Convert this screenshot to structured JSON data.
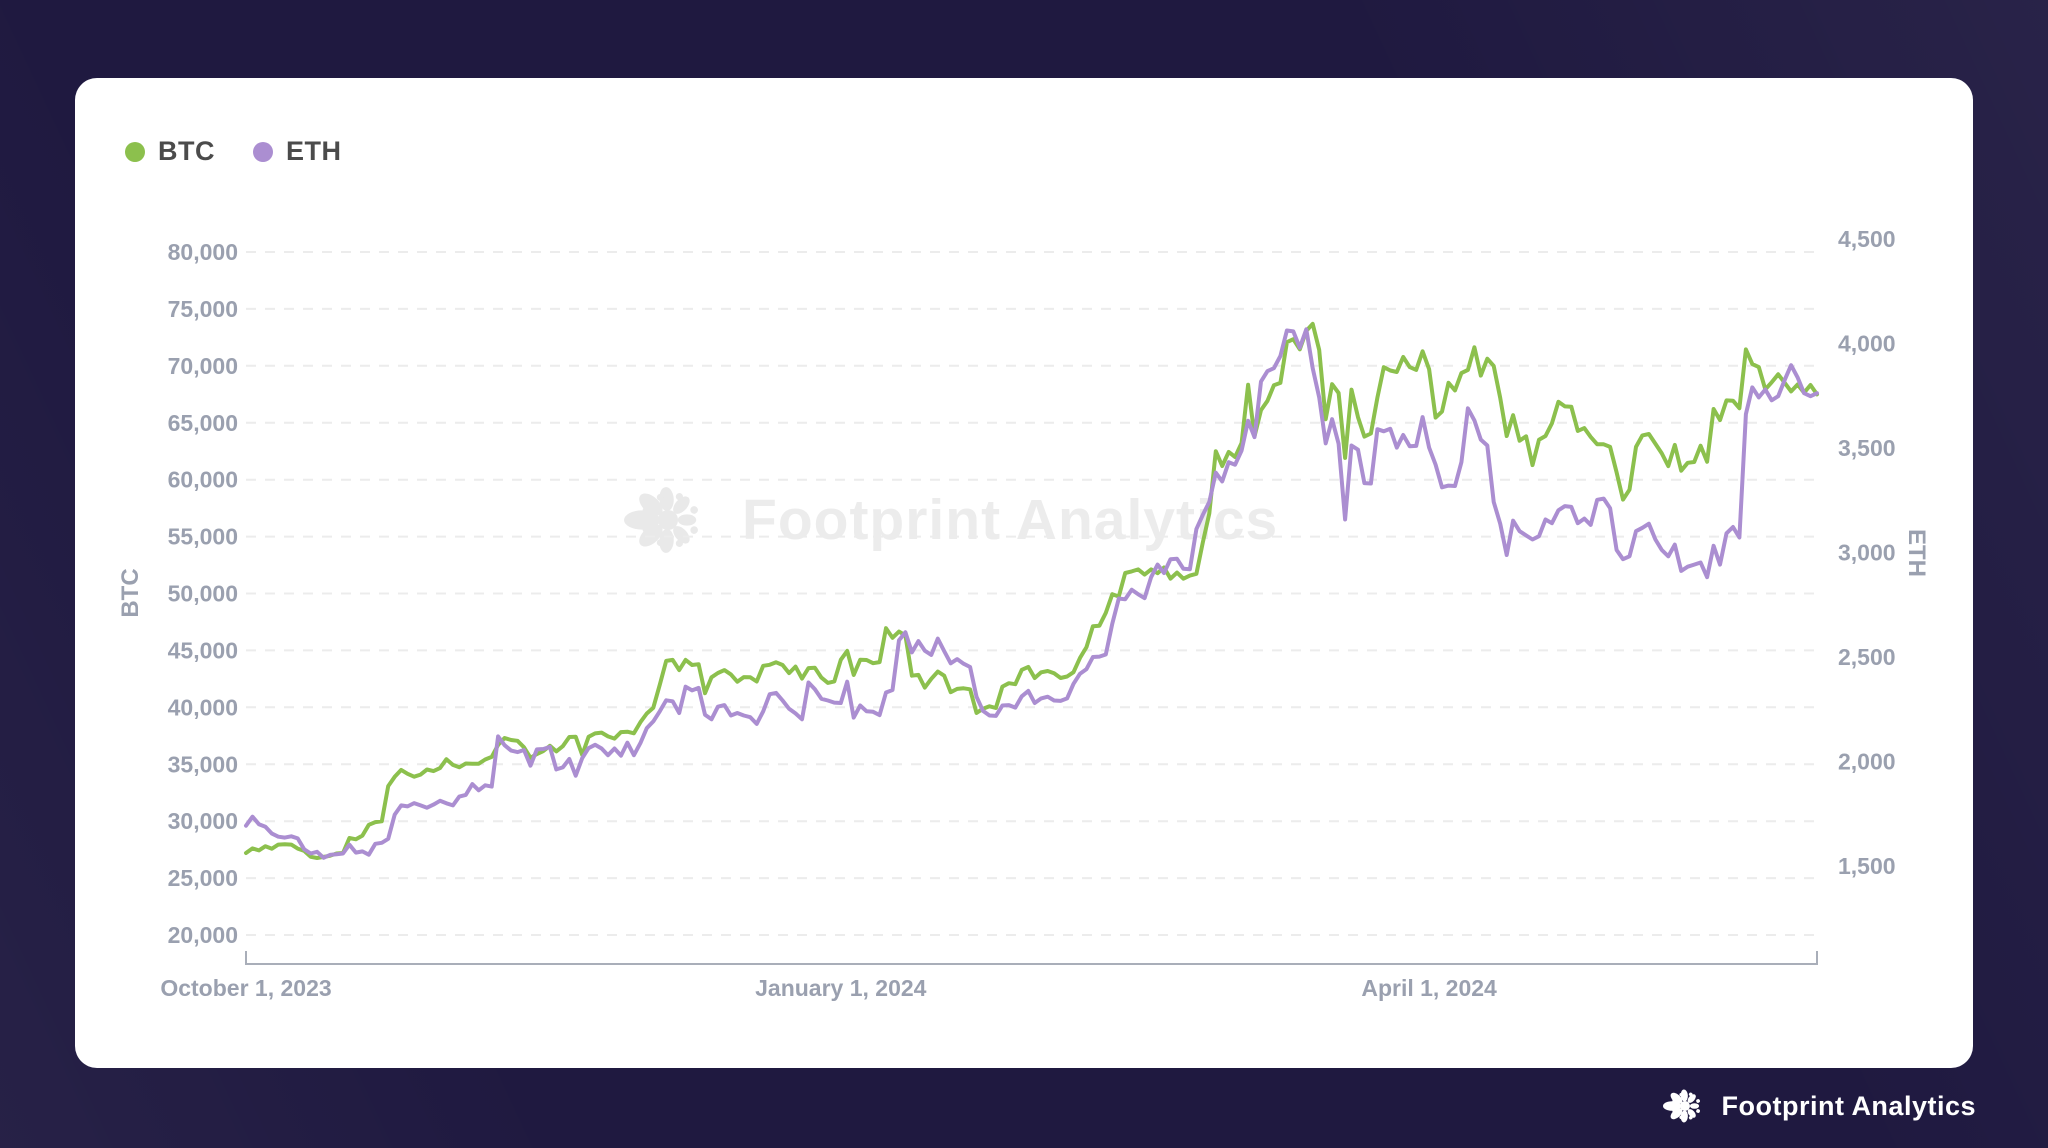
{
  "page": {
    "background_color": "#1f1940",
    "card_color": "#ffffff"
  },
  "legend": {
    "items": [
      {
        "label": "BTC",
        "color": "#8cc04d"
      },
      {
        "label": "ETH",
        "color": "#ab8ed1"
      }
    ]
  },
  "watermark": {
    "text": "Footprint Analytics",
    "icon": "footprint-flower-icon",
    "color": "#ececec"
  },
  "footer": {
    "brand": "Footprint Analytics",
    "icon": "footprint-flower-icon",
    "color": "#ffffff"
  },
  "chart_data": {
    "type": "line",
    "grid": "horizontal-dashed",
    "legend_position": "top-left",
    "x_axis": {
      "ticks": [
        {
          "label": "October 1, 2023",
          "index": 0
        },
        {
          "label": "January 1, 2024",
          "index": 92
        },
        {
          "label": "April 1, 2024",
          "index": 183
        }
      ],
      "range_days": 244
    },
    "left_axis": {
      "title": "BTC",
      "ticks": [
        80000,
        75000,
        70000,
        65000,
        60000,
        55000,
        50000,
        45000,
        40000,
        35000,
        30000,
        25000,
        20000
      ],
      "range": [
        20000,
        80000
      ],
      "tick_color": "#9aa0af"
    },
    "right_axis": {
      "title": "ETH",
      "ticks": [
        4500,
        4000,
        3500,
        3000,
        2500,
        2000,
        1500
      ],
      "range": [
        1500,
        4500
      ],
      "tick_color": "#9aa0af"
    },
    "series": [
      {
        "name": "BTC",
        "axis": "left",
        "color": "#8cc04d",
        "values": [
          27200,
          27610,
          27430,
          27800,
          27580,
          27940,
          27970,
          27940,
          27590,
          27390,
          26870,
          26760,
          26860,
          26960,
          27160,
          27200,
          28520,
          28410,
          28730,
          29680,
          29920,
          29990,
          33080,
          33900,
          34500,
          34160,
          33910,
          34090,
          34540,
          34400,
          34660,
          35440,
          34940,
          34730,
          35070,
          35040,
          35050,
          35420,
          35650,
          36700,
          37310,
          37130,
          37060,
          36490,
          35570,
          35900,
          36160,
          36620,
          36130,
          36590,
          37390,
          37420,
          35810,
          37410,
          37710,
          37780,
          37450,
          37250,
          37820,
          37860,
          37720,
          38690,
          39460,
          39970,
          41990,
          44080,
          44170,
          43270,
          44170,
          43720,
          43790,
          41240,
          42640,
          43020,
          43270,
          42890,
          42250,
          42660,
          42640,
          42270,
          43650,
          43740,
          43960,
          43720,
          43010,
          43580,
          42520,
          43450,
          43470,
          42610,
          42150,
          42280,
          44180,
          44960,
          42850,
          44180,
          44160,
          43880,
          43970,
          46950,
          46110,
          46650,
          46310,
          42780,
          42850,
          41730,
          42510,
          43140,
          42780,
          41330,
          41620,
          41670,
          41580,
          39510,
          39880,
          40090,
          39940,
          41820,
          42120,
          42030,
          43300,
          43550,
          42580,
          43080,
          43190,
          42990,
          42580,
          42710,
          43090,
          44340,
          45290,
          47130,
          47170,
          48300,
          49940,
          49740,
          51800,
          51940,
          52120,
          51660,
          52120,
          51780,
          52280,
          51310,
          51840,
          51300,
          51570,
          51730,
          54480,
          57040,
          62500,
          61200,
          62440,
          61990,
          63220,
          68330,
          63800,
          66110,
          66930,
          68300,
          68500,
          72080,
          72340,
          71450,
          73070,
          73680,
          71390,
          65310,
          68390,
          67610,
          61910,
          67910,
          65490,
          63780,
          64060,
          67210,
          69880,
          69590,
          69460,
          70780,
          69890,
          69640,
          71280,
          69700,
          65450,
          65980,
          68510,
          67840,
          69360,
          69640,
          71630,
          69140,
          70630,
          69990,
          67190,
          63840,
          65660,
          63420,
          63810,
          61280,
          63510,
          63840,
          64940,
          66840,
          66440,
          66410,
          64280,
          64530,
          63760,
          63110,
          63110,
          62880,
          60640,
          58250,
          59120,
          62880,
          63890,
          64010,
          63160,
          62310,
          61190,
          63050,
          60790,
          61480,
          61550,
          62980,
          61570,
          66210,
          65230,
          66960,
          66940,
          66280,
          71440,
          70150,
          69890,
          67930,
          68550,
          69260,
          68510,
          67750,
          68360,
          67640,
          68320,
          67490
        ]
      },
      {
        "name": "ETH",
        "axis": "right",
        "color": "#ab8ed1",
        "values": [
          1693,
          1736,
          1700,
          1688,
          1655,
          1640,
          1636,
          1642,
          1632,
          1580,
          1560,
          1568,
          1539,
          1553,
          1556,
          1560,
          1602,
          1564,
          1570,
          1554,
          1606,
          1611,
          1630,
          1746,
          1790,
          1785,
          1801,
          1790,
          1779,
          1794,
          1812,
          1800,
          1790,
          1832,
          1840,
          1892,
          1862,
          1886,
          1880,
          2120,
          2078,
          2052,
          2045,
          2055,
          1980,
          2058,
          2060,
          2070,
          1962,
          1972,
          2012,
          1932,
          2016,
          2064,
          2080,
          2062,
          2030,
          2062,
          2028,
          2090,
          2030,
          2088,
          2160,
          2192,
          2240,
          2293,
          2288,
          2232,
          2358,
          2340,
          2352,
          2224,
          2202,
          2262,
          2270,
          2220,
          2232,
          2220,
          2212,
          2180,
          2240,
          2322,
          2328,
          2292,
          2252,
          2230,
          2202,
          2378,
          2346,
          2300,
          2292,
          2282,
          2280,
          2382,
          2210,
          2268,
          2240,
          2238,
          2222,
          2330,
          2342,
          2580,
          2618,
          2522,
          2576,
          2530,
          2510,
          2588,
          2528,
          2470,
          2490,
          2468,
          2452,
          2310,
          2242,
          2220,
          2218,
          2268,
          2270,
          2258,
          2312,
          2338,
          2280,
          2302,
          2310,
          2292,
          2290,
          2302,
          2372,
          2420,
          2442,
          2500,
          2502,
          2512,
          2660,
          2780,
          2776,
          2822,
          2800,
          2782,
          2882,
          2942,
          2902,
          2968,
          2970,
          2922,
          2920,
          3112,
          3180,
          3242,
          3382,
          3340,
          3432,
          3420,
          3488,
          3630,
          3552,
          3818,
          3868,
          3882,
          3940,
          4062,
          4058,
          3980,
          4068,
          3882,
          3742,
          3522,
          3638,
          3520,
          3158,
          3512,
          3492,
          3332,
          3330,
          3590,
          3580,
          3592,
          3502,
          3562,
          3508,
          3510,
          3648,
          3502,
          3420,
          3312,
          3320,
          3318,
          3432,
          3690,
          3632,
          3540,
          3512,
          3242,
          3138,
          2988,
          3152,
          3102,
          3082,
          3062,
          3078,
          3158,
          3140,
          3202,
          3222,
          3218,
          3140,
          3162,
          3132,
          3252,
          3258,
          3212,
          3012,
          2968,
          2982,
          3102,
          3118,
          3138,
          3062,
          3012,
          2982,
          3038,
          2912,
          2932,
          2942,
          2952,
          2882,
          3032,
          2942,
          3092,
          3122,
          3072,
          3662,
          3790,
          3742,
          3780,
          3728,
          3748,
          3826,
          3896,
          3838,
          3762,
          3748,
          3762
        ]
      }
    ]
  }
}
